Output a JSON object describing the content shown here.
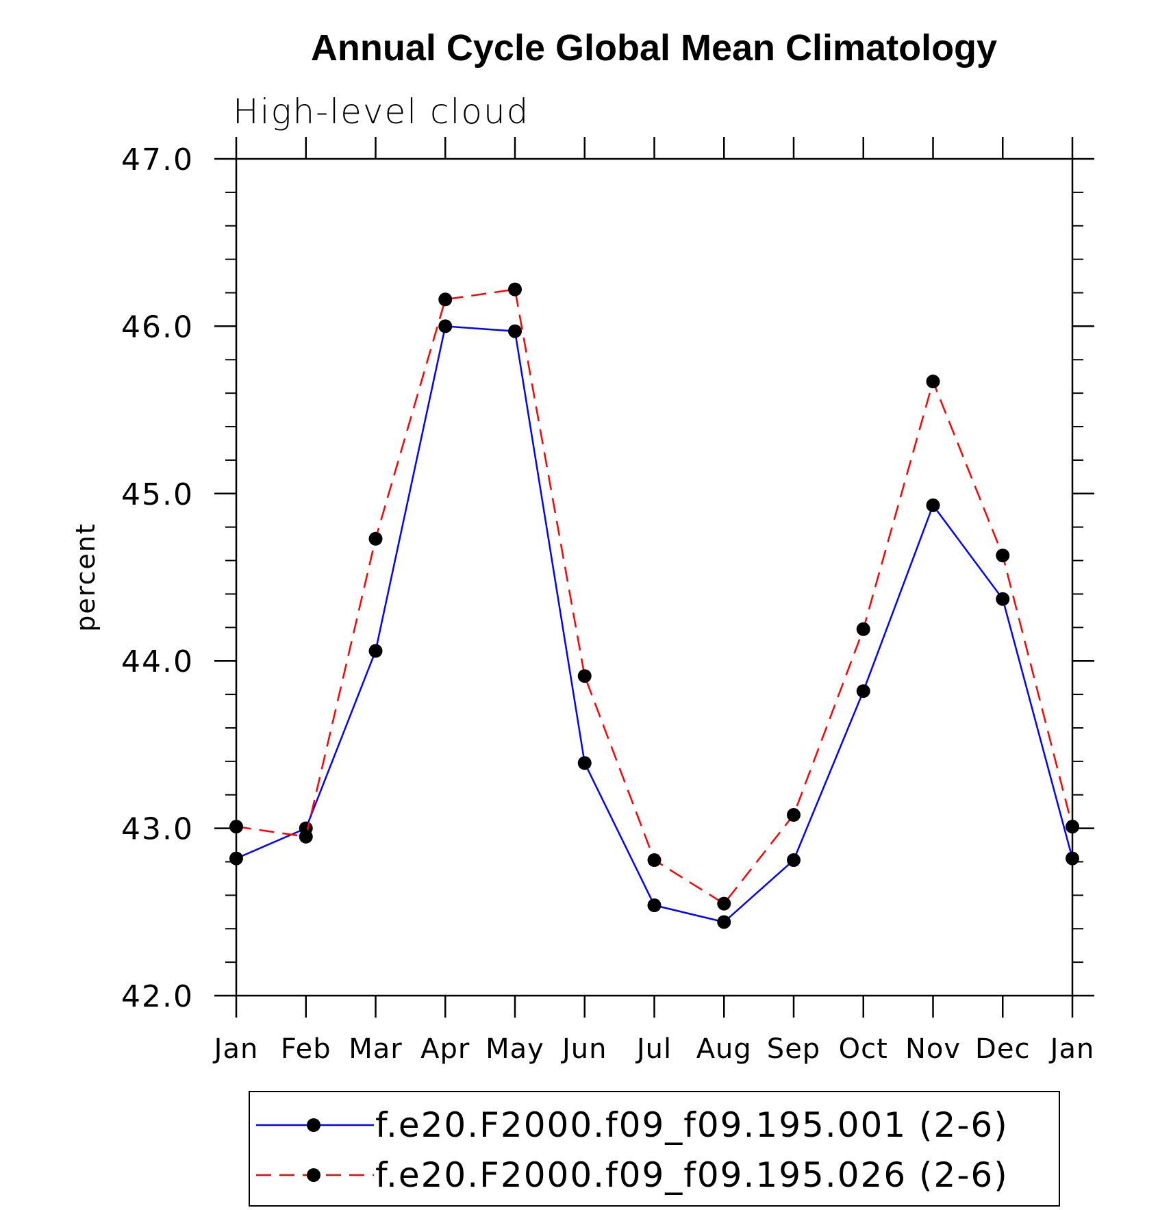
{
  "chart_data": {
    "type": "line",
    "title": "Annual Cycle Global Mean Climatology",
    "subtitle": "High-level cloud",
    "xlabel": "",
    "ylabel": "percent",
    "categories": [
      "Jan",
      "Feb",
      "Mar",
      "Apr",
      "May",
      "Jun",
      "Jul",
      "Aug",
      "Sep",
      "Oct",
      "Nov",
      "Dec",
      "Jan"
    ],
    "ylim": [
      42.0,
      47.0
    ],
    "yticks": [
      "42.0",
      "43.0",
      "44.0",
      "45.0",
      "46.0",
      "47.0"
    ],
    "ytick_values": [
      42.0,
      43.0,
      44.0,
      45.0,
      46.0,
      47.0
    ],
    "yminor_step": 0.2,
    "series": [
      {
        "name": "f.e20.F2000.f09_f09.195.001 (2-6)",
        "color": "#0000ff",
        "dash": "solid",
        "marker": "filled-circle",
        "values": [
          42.82,
          43.0,
          44.06,
          46.0,
          45.97,
          43.39,
          42.54,
          42.44,
          42.81,
          43.82,
          44.93,
          44.37,
          42.82
        ]
      },
      {
        "name": "f.e20.F2000.f09_f09.195.026 (2-6)",
        "color": "#ff0000",
        "dash": "dashed",
        "marker": "filled-circle",
        "values": [
          43.01,
          42.95,
          44.73,
          46.16,
          46.22,
          43.91,
          42.81,
          42.55,
          43.08,
          44.19,
          45.67,
          44.63,
          43.01
        ]
      }
    ],
    "legend_position": "bottom"
  }
}
